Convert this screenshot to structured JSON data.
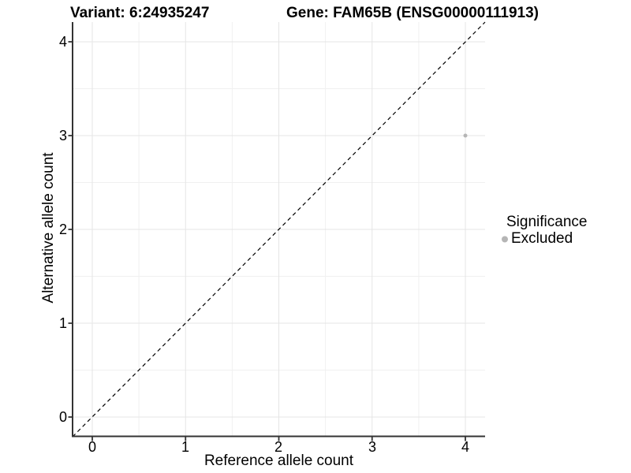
{
  "header": {
    "variant_title": "Variant: 6:24935247",
    "gene_title": "Gene: FAM65B (ENSG00000111913)"
  },
  "axes": {
    "x_title": "Reference allele count",
    "y_title": "Alternative allele count",
    "x_tick_labels": [
      "0",
      "1",
      "2",
      "3",
      "4"
    ],
    "y_tick_labels": [
      "0",
      "1",
      "2",
      "3",
      "4"
    ]
  },
  "legend": {
    "title": "Significance",
    "items": [
      {
        "label": "Excluded",
        "color": "#b5b5b5"
      }
    ]
  },
  "colors": {
    "axis_line": "#333333",
    "major_grid": "#e5e5e5",
    "minor_grid": "#f0f0f0",
    "reference_line": "#000000",
    "point": "#b5b5b5",
    "background": "#ffffff"
  },
  "chart_data": {
    "type": "scatter",
    "title": "Variant: 6:24935247   Gene: FAM65B (ENSG00000111913)",
    "xlabel": "Reference allele count",
    "ylabel": "Alternative allele count",
    "xlim": [
      -0.21,
      4.21
    ],
    "ylim": [
      -0.21,
      4.21
    ],
    "x_ticks": [
      0,
      1,
      2,
      3,
      4
    ],
    "y_ticks": [
      0,
      1,
      2,
      3,
      4
    ],
    "grid": true,
    "series": [
      {
        "name": "Excluded",
        "color": "#b5b5b5",
        "points": [
          {
            "x": 4,
            "y": 3
          }
        ]
      }
    ],
    "reference_line": {
      "style": "dashed",
      "slope": 1,
      "intercept": 0
    },
    "legend_title": "Significance",
    "legend_position": "right"
  }
}
